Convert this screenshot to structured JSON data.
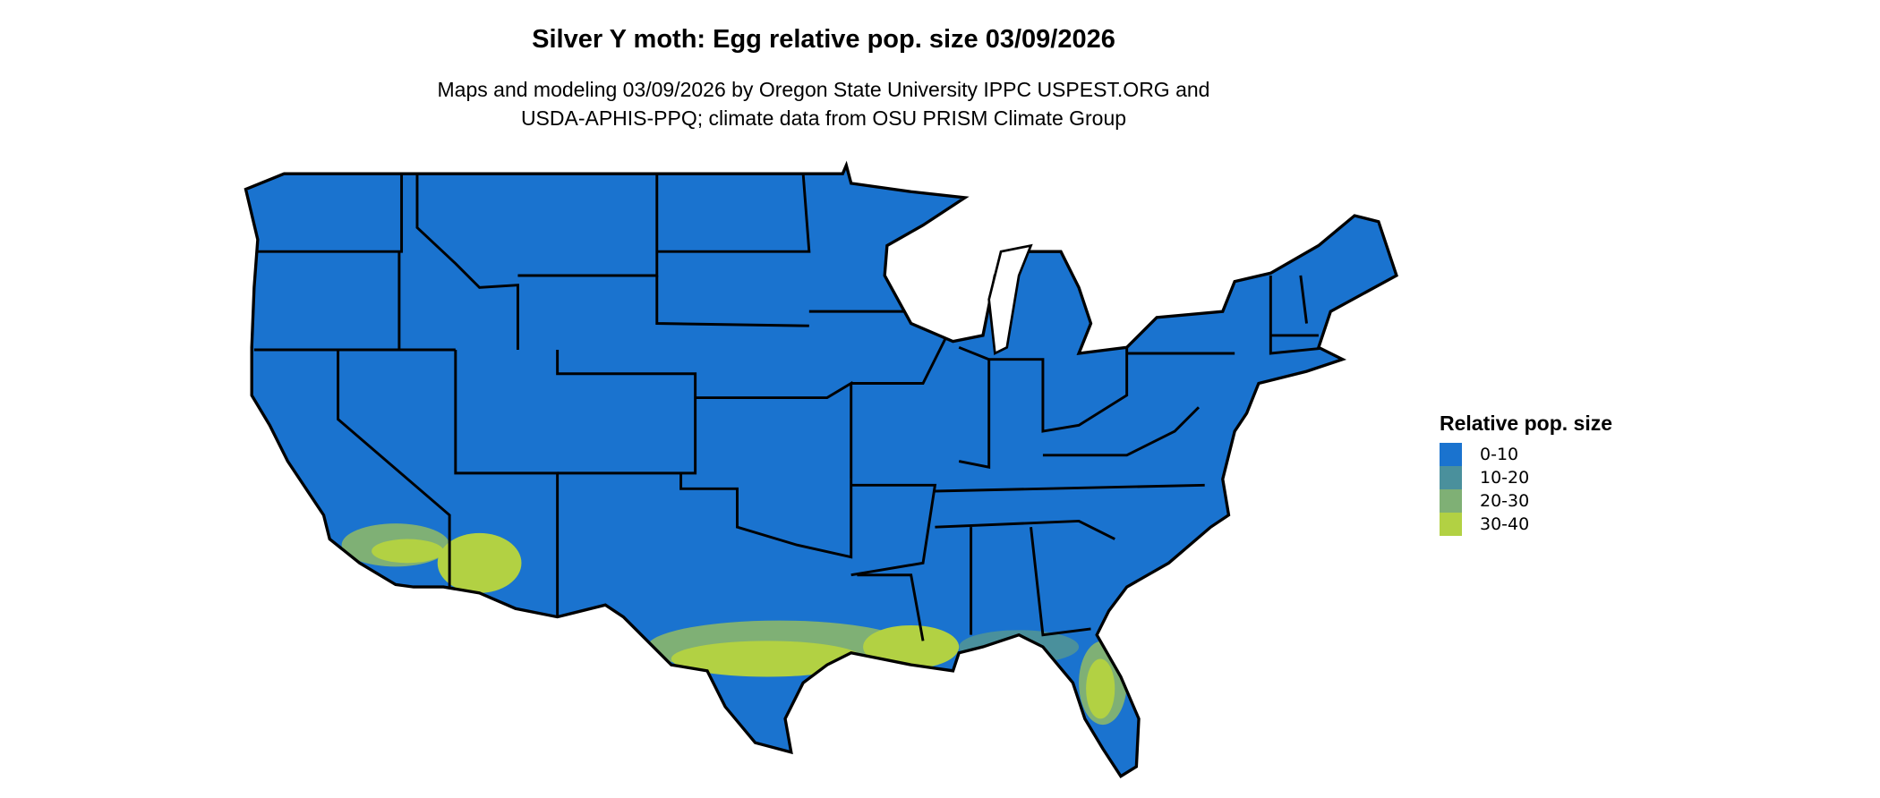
{
  "title": "Silver Y moth: Egg relative pop. size 03/09/2026",
  "subtitle_line1": "Maps and modeling 03/09/2026 by Oregon State University IPPC USPEST.ORG and",
  "subtitle_line2": "USDA-APHIS-PPQ; climate data from OSU PRISM Climate Group",
  "map": {
    "region": "Contiguous United States",
    "boundaries": "state outlines (black)"
  },
  "legend": {
    "title": "Relative pop. size",
    "position": "right",
    "items": [
      {
        "label": "0-10",
        "color": "#1a73cf"
      },
      {
        "label": "10-20",
        "color": "#4a909c"
      },
      {
        "label": "20-30",
        "color": "#7fb075"
      },
      {
        "label": "30-40",
        "color": "#b2d143"
      }
    ]
  }
}
